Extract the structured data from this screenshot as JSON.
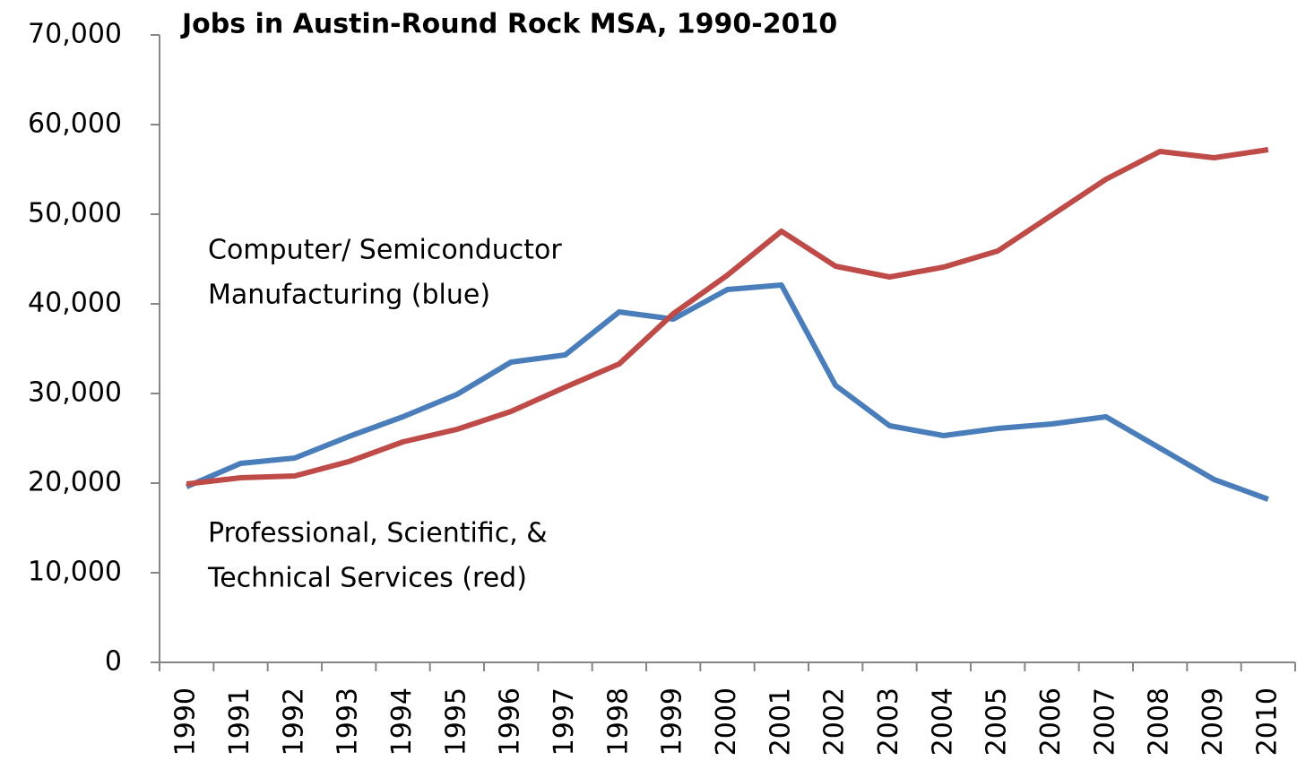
{
  "chart_data": {
    "type": "line",
    "title": "Jobs in Austin-Round Rock MSA, 1990-2010",
    "categories": [
      "1990",
      "1991",
      "1992",
      "1993",
      "1994",
      "1995",
      "1996",
      "1997",
      "1998",
      "1999",
      "2000",
      "2001",
      "2002",
      "2003",
      "2004",
      "2005",
      "2006",
      "2007",
      "2008",
      "2009",
      "2010"
    ],
    "series": [
      {
        "color": "#4a7ebb",
        "values": [
          19600,
          22200,
          22800,
          25200,
          27400,
          29900,
          33500,
          34300,
          39100,
          38300,
          41600,
          42100,
          30900,
          26400,
          25300,
          26100,
          26600,
          27400,
          23900,
          20400,
          18200
        ]
      },
      {
        "color": "#be4b48",
        "values": [
          19900,
          20600,
          20800,
          22400,
          24600,
          26000,
          28000,
          30700,
          33300,
          38900,
          43200,
          48100,
          44200,
          43000,
          44100,
          45900,
          49900,
          53900,
          57000,
          56300,
          57200
        ]
      }
    ],
    "annotations": [
      {
        "lines": [
          "Computer/ Semiconductor",
          "Manufacturing (blue)"
        ]
      },
      {
        "lines": [
          "Professional, Scientific, &",
          "Technical Services (red)"
        ]
      }
    ],
    "ylim": [
      0,
      70000
    ],
    "yticks": [
      0,
      {
        "value": 10000,
        "label": "10,000"
      },
      {
        "value": 20000,
        "label": "20,000"
      },
      {
        "value": 30000,
        "label": "30,000"
      },
      {
        "value": 40000,
        "label": "40,000"
      },
      {
        "value": 50000,
        "label": "50,000"
      },
      {
        "value": 60000,
        "label": "60,000"
      },
      {
        "value": 70000,
        "label": "70,000"
      }
    ],
    "grid": false
  }
}
